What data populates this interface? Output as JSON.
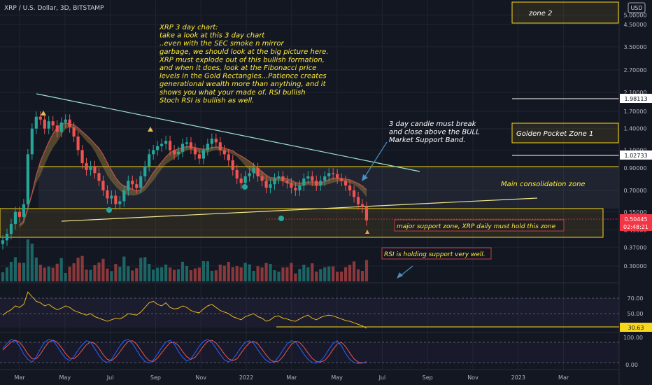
{
  "header": {
    "symbol_title": "XRP / U.S. Dollar, 3D, BITSTAMP"
  },
  "currency_badge": "USD",
  "colors": {
    "background": "#131722",
    "grid": "#1f2431",
    "bull": "#26a69a",
    "bear": "#ef5350",
    "annotation_text": "#ffeb3b",
    "zone_border": "#f9d71c",
    "trendline": "#9ce3cf",
    "rsi_line": "#e8b820",
    "stoch_k": "#2962ff",
    "stoch_d": "#ef5350",
    "price_tag": "#f23645"
  },
  "chart_data": {
    "type": "candlestick",
    "price_axis": {
      "scale": "log",
      "ticks": [
        "5.00000",
        "4.50000",
        "3.50000",
        "2.70000",
        "2.10000",
        "1.70000",
        "1.40000",
        "1.10000",
        "0.90000",
        "0.70000",
        "0.55000",
        "0.45000",
        "0.37000",
        "0.30000"
      ],
      "highlighted": [
        {
          "value": "1.98113",
          "style": "white"
        },
        {
          "value": "1.02733",
          "style": "white"
        },
        {
          "value": "0.50445",
          "style": "red",
          "countdown": "02:48:21"
        }
      ]
    },
    "time_axis": {
      "ticks": [
        "Mar",
        "May",
        "Jul",
        "Sep",
        "Nov",
        "2022",
        "Mar",
        "May",
        "Jul",
        "Sep",
        "Nov",
        "2023",
        "Mar"
      ]
    },
    "price_series_close": [
      0.4,
      0.43,
      0.48,
      0.55,
      0.52,
      0.6,
      1.05,
      1.4,
      1.6,
      1.55,
      1.4,
      1.52,
      1.45,
      1.35,
      1.5,
      1.55,
      1.42,
      1.28,
      1.1,
      0.95,
      0.88,
      0.92,
      0.85,
      0.78,
      0.7,
      0.64,
      0.66,
      0.6,
      0.62,
      0.7,
      0.78,
      0.75,
      0.72,
      0.82,
      0.92,
      1.05,
      1.1,
      1.15,
      1.18,
      1.22,
      1.1,
      1.05,
      1.08,
      1.18,
      1.2,
      1.12,
      1.05,
      1.0,
      1.1,
      1.18,
      1.25,
      1.2,
      1.1,
      1.05,
      0.98,
      0.88,
      0.8,
      0.76,
      0.82,
      0.85,
      0.9,
      0.82,
      0.78,
      0.72,
      0.75,
      0.8,
      0.82,
      0.78,
      0.76,
      0.72,
      0.7,
      0.74,
      0.8,
      0.82,
      0.78,
      0.74,
      0.78,
      0.82,
      0.85,
      0.84,
      0.8,
      0.78,
      0.74,
      0.7,
      0.65,
      0.6,
      0.58,
      0.5
    ],
    "moving_average_band": {
      "label": "Bull Market Support Band",
      "color": "#c8a040"
    },
    "rsi": {
      "ticks": [
        "70.00",
        "50.00",
        "30.63"
      ],
      "current": "30.63",
      "values": [
        48,
        52,
        55,
        60,
        58,
        62,
        78,
        72,
        66,
        64,
        60,
        62,
        58,
        55,
        57,
        60,
        58,
        54,
        52,
        50,
        48,
        50,
        46,
        44,
        42,
        40,
        42,
        44,
        43,
        46,
        50,
        49,
        48,
        52,
        58,
        64,
        66,
        62,
        60,
        64,
        58,
        56,
        57,
        60,
        58,
        54,
        52,
        51,
        56,
        60,
        62,
        58,
        54,
        52,
        50,
        46,
        44,
        42,
        46,
        48,
        50,
        46,
        44,
        40,
        42,
        46,
        47,
        44,
        43,
        41,
        40,
        43,
        46,
        48,
        44,
        42,
        45,
        47,
        48,
        47,
        45,
        43,
        41,
        40,
        38,
        36,
        34,
        31
      ]
    },
    "stoch_rsi": {
      "ticks": [
        "100.00",
        "0.00"
      ],
      "k": [
        60,
        80,
        95,
        90,
        70,
        40,
        20,
        10,
        30,
        60,
        85,
        95,
        90,
        70,
        45,
        25,
        15,
        30,
        55,
        75,
        90,
        85,
        60,
        35,
        15,
        8,
        20,
        45,
        70,
        90,
        95,
        80,
        55,
        30,
        12,
        6,
        18,
        40,
        65,
        85,
        92,
        78,
        50,
        28,
        14,
        22,
        45,
        70,
        88,
        95,
        85,
        62,
        38,
        18,
        10,
        20,
        42,
        66,
        84,
        90,
        80,
        56,
        34,
        16,
        8,
        12,
        30,
        55,
        78,
        90,
        86,
        64,
        40,
        20,
        8,
        6,
        14,
        32,
        58,
        80,
        90,
        70,
        42,
        20,
        8,
        5,
        6,
        12
      ],
      "d": [
        55,
        70,
        85,
        92,
        85,
        65,
        40,
        22,
        22,
        40,
        65,
        85,
        92,
        85,
        65,
        42,
        25,
        22,
        35,
        55,
        75,
        85,
        80,
        62,
        38,
        20,
        15,
        28,
        48,
        70,
        88,
        90,
        78,
        55,
        32,
        15,
        12,
        25,
        45,
        65,
        82,
        85,
        72,
        50,
        30,
        20,
        28,
        48,
        70,
        88,
        92,
        82,
        62,
        40,
        22,
        15,
        22,
        44,
        66,
        82,
        88,
        78,
        58,
        36,
        18,
        10,
        14,
        30,
        54,
        76,
        88,
        84,
        66,
        44,
        24,
        12,
        10,
        16,
        34,
        58,
        78,
        84,
        68,
        44,
        22,
        10,
        7,
        8
      ]
    }
  },
  "annotations": {
    "main_note": "XRP 3 day chart:\ntake a look at this 3 day chart\n..even with the SEC smoke n mirror\ngarbage, we should look at the big picture here.\nXRP must explode out of this bullish formation,\nand when it does, look at the Fibonacci price\nlevels in the Gold Rectangles...Patience creates\ngenerational wealth more than anything, and it\nshows you what your made of. RSI bullish\nStoch RSI is bullish as well.",
    "candle_note": "3 day candle must break\nand close above the BULL\nMarket Support Band.",
    "zone2": "zone 2",
    "golden_pocket": "Golden Pocket Zone 1",
    "main_consolidation": "Main consolidation zone",
    "major_support": "major support zone, XRP daily must hold this zone",
    "rsi_support": "RSI is holding support very well."
  }
}
